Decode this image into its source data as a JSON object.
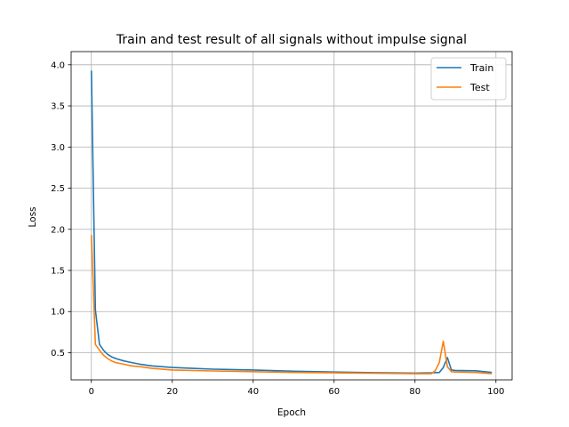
{
  "chart_data": {
    "type": "line",
    "title": "Train and test result of all signals without impulse signal",
    "xlabel": "Epoch",
    "ylabel": "Loss",
    "xlim": [
      -5,
      104
    ],
    "ylim": [
      0.17,
      4.16
    ],
    "x_ticks": [
      0,
      20,
      40,
      60,
      80,
      100
    ],
    "y_ticks": [
      0.5,
      1.0,
      1.5,
      2.0,
      2.5,
      3.0,
      3.5,
      4.0
    ],
    "x_tick_labels": [
      "0",
      "20",
      "40",
      "60",
      "80",
      "100"
    ],
    "y_tick_labels": [
      "0.5",
      "1.0",
      "1.5",
      "2.0",
      "2.5",
      "3.0",
      "3.5",
      "4.0"
    ],
    "grid": true,
    "legend_position": "top-right",
    "series": [
      {
        "name": "Train",
        "color": "#1f77b4",
        "x": [
          0,
          1,
          2,
          3,
          4,
          5,
          6,
          8,
          10,
          12,
          15,
          20,
          25,
          30,
          40,
          50,
          60,
          70,
          80,
          84,
          86,
          87,
          88,
          89,
          90,
          95,
          99
        ],
        "y": [
          3.93,
          1.02,
          0.6,
          0.53,
          0.48,
          0.45,
          0.43,
          0.4,
          0.38,
          0.36,
          0.34,
          0.32,
          0.31,
          0.3,
          0.29,
          0.275,
          0.265,
          0.258,
          0.252,
          0.255,
          0.26,
          0.32,
          0.44,
          0.29,
          0.285,
          0.28,
          0.26
        ]
      },
      {
        "name": "Test",
        "color": "#ff7f0e",
        "x": [
          0,
          1,
          2,
          3,
          4,
          5,
          6,
          8,
          10,
          12,
          15,
          20,
          25,
          30,
          40,
          50,
          60,
          70,
          80,
          84,
          85,
          86,
          87,
          88,
          89,
          90,
          95,
          99
        ],
        "y": [
          1.93,
          0.6,
          0.53,
          0.47,
          0.43,
          0.4,
          0.38,
          0.36,
          0.34,
          0.33,
          0.31,
          0.29,
          0.283,
          0.278,
          0.27,
          0.26,
          0.255,
          0.25,
          0.245,
          0.245,
          0.28,
          0.38,
          0.64,
          0.33,
          0.27,
          0.265,
          0.26,
          0.245
        ]
      }
    ]
  }
}
